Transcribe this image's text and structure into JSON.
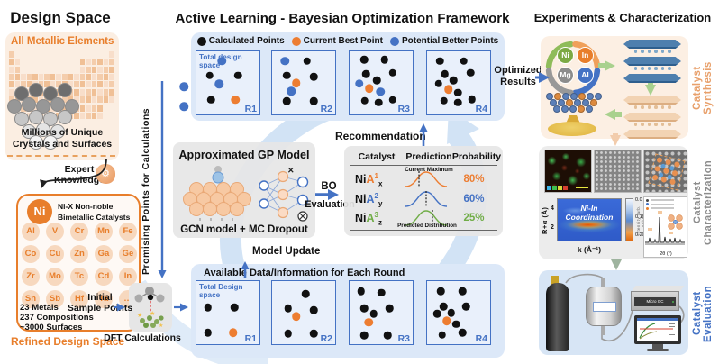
{
  "design": {
    "title": "Design Space",
    "all_metallic": "All Metallic Elements",
    "millions_l1": "Millions of Unique",
    "millions_l2": "Crystals and Surfaces",
    "expert_l1": "Expert",
    "expert_l2": "Knowledge",
    "ni_symbol": "Ni",
    "nix_l1": "Ni-X Non-noble",
    "nix_l2": "Bimetallic Catalysts",
    "element_rows": [
      [
        "Al",
        "V",
        "Cr",
        "Mn",
        "Fe"
      ],
      [
        "Co",
        "Cu",
        "Zn",
        "Ga",
        "Ge"
      ],
      [
        "Zr",
        "Mo",
        "Tc",
        "Cd",
        "In"
      ],
      [
        "Sn",
        "Sb",
        "Hf",
        "Ta",
        "…"
      ]
    ],
    "stats": [
      "23 Metals",
      "237 Compositions",
      "~3000 Surfaces"
    ],
    "refined": "Refined Design Space",
    "initial_l1": "Initial",
    "initial_l2": "Sample Points"
  },
  "framework": {
    "title": "Active Learning - Bayesian Optimization Framework",
    "legend": [
      {
        "label": "Calculated Points",
        "color": "#111111"
      },
      {
        "label": "Current Best Point",
        "color": "#ED7D31"
      },
      {
        "label": "Potential Better Points",
        "color": "#4472C4"
      }
    ],
    "dot_colors": {
      "k": "#111111",
      "o": "#ED7D31",
      "b": "#4472C4"
    },
    "top_rounds": {
      "note": "Total design space",
      "rounds": [
        {
          "label": "R1",
          "dots": [
            [
              40,
              15,
              "b"
            ],
            [
              21,
              38,
              "k"
            ],
            [
              66,
              38,
              "k"
            ],
            [
              36,
              52,
              "b"
            ],
            [
              23,
              77,
              "k"
            ],
            [
              62,
              77,
              "o"
            ]
          ]
        },
        {
          "label": "R2",
          "dots": [
            [
              20,
              15,
              "b"
            ],
            [
              55,
              15,
              "k"
            ],
            [
              23,
              38,
              "k"
            ],
            [
              66,
              40,
              "k"
            ],
            [
              38,
              50,
              "o"
            ],
            [
              30,
              63,
              "b"
            ],
            [
              23,
              79,
              "k"
            ],
            [
              66,
              79,
              "k"
            ]
          ]
        },
        {
          "label": "R3",
          "dots": [
            [
              23,
              13,
              "k"
            ],
            [
              55,
              13,
              "k"
            ],
            [
              26,
              36,
              "k"
            ],
            [
              68,
              34,
              "k"
            ],
            [
              15,
              51,
              "b"
            ],
            [
              43,
              46,
              "k"
            ],
            [
              31,
              59,
              "o"
            ],
            [
              49,
              64,
              "b"
            ],
            [
              24,
              78,
              "k"
            ],
            [
              46,
              81,
              "k"
            ],
            [
              68,
              77,
              "k"
            ]
          ]
        },
        {
          "label": "R4",
          "dots": [
            [
              20,
              15,
              "k"
            ],
            [
              58,
              15,
              "k"
            ],
            [
              28,
              36,
              "k"
            ],
            [
              69,
              34,
              "k"
            ],
            [
              18,
              51,
              "k"
            ],
            [
              42,
              46,
              "k"
            ],
            [
              34,
              60,
              "o"
            ],
            [
              49,
              65,
              "k"
            ],
            [
              27,
              78,
              "k"
            ],
            [
              49,
              81,
              "k"
            ],
            [
              71,
              76,
              "k"
            ]
          ]
        }
      ]
    },
    "bottom_rounds": {
      "title": "Available Data/Information for Each Round",
      "note": "Total Design space",
      "rounds": [
        {
          "label": "R1",
          "dots": [
            [
              18,
              42,
              "k"
            ],
            [
              60,
              42,
              "k"
            ],
            [
              18,
              82,
              "k"
            ],
            [
              58,
              82,
              "o"
            ]
          ]
        },
        {
          "label": "R2",
          "dots": [
            [
              53,
              20,
              "k"
            ],
            [
              25,
              43,
              "k"
            ],
            [
              66,
              46,
              "k"
            ],
            [
              38,
              56,
              "o"
            ],
            [
              25,
              83,
              "k"
            ],
            [
              66,
              83,
              "k"
            ]
          ]
        },
        {
          "label": "R3",
          "dots": [
            [
              18,
              16,
              "k"
            ],
            [
              50,
              18,
              "k"
            ],
            [
              23,
              43,
              "k"
            ],
            [
              63,
              43,
              "k"
            ],
            [
              38,
              52,
              "k"
            ],
            [
              30,
              65,
              "o"
            ],
            [
              23,
              86,
              "k"
            ],
            [
              60,
              86,
              "k"
            ]
          ]
        },
        {
          "label": "R4",
          "dots": [
            [
              22,
              16,
              "k"
            ],
            [
              56,
              16,
              "k"
            ],
            [
              26,
              40,
              "k"
            ],
            [
              62,
              40,
              "k"
            ],
            [
              16,
              52,
              "k"
            ],
            [
              38,
              50,
              "k"
            ],
            [
              31,
              63,
              "o"
            ],
            [
              46,
              68,
              "k"
            ],
            [
              24,
              85,
              "k"
            ],
            [
              56,
              82,
              "k"
            ]
          ]
        }
      ]
    },
    "recommendation": "Recommendation",
    "gp_title": "Approximated GP Model",
    "gp_caption_left": "GCN model",
    "gp_caption_plus": "+",
    "gp_caption_right": "MC Dropout",
    "bo_l1": "BO",
    "bo_l2": "Evaluation",
    "model_update": "Model Update",
    "promising": "Promising Points for Calculations",
    "dft": "DFT Calculations",
    "optimized_l1": "Optimized",
    "optimized_l2": "Results",
    "table": {
      "headers": [
        "Catalyst",
        "Prediction",
        "Probability"
      ],
      "current_max": "Current Maximum",
      "pred_dist": "Predicted Distribution",
      "catalyst_prefix": "Ni",
      "catalyst_letter": "A",
      "rows": [
        {
          "sup": "1",
          "sub": "x",
          "color": "#ED7D31",
          "prob": "80%",
          "dash_pos": "left"
        },
        {
          "sup": "2",
          "sub": "y",
          "color": "#4472C4",
          "prob": "60%",
          "dash_pos": "center"
        },
        {
          "sup": "3",
          "sub": "z",
          "color": "#70AD47",
          "prob": "25%",
          "dash_pos": "right"
        }
      ]
    }
  },
  "experiments": {
    "title": "Experiments & Characterization",
    "synthesis_label": "Catalyst Synthesis",
    "characterization_label": "Catalyst Characterization",
    "evaluation_label": "Catalyst Evaluation",
    "cycle": [
      {
        "symbol": "Ni",
        "color": "#7CA944"
      },
      {
        "symbol": "In",
        "color": "#E87E2B"
      },
      {
        "symbol": "Mg",
        "color": "#8C8C8C"
      },
      {
        "symbol": "Al",
        "color": "#4472C4"
      }
    ],
    "wavelet": {
      "line1": "Ni-In",
      "line2": "Coordination",
      "ylabel": "R+α (Å)",
      "xlabel": "k (Å⁻¹)",
      "yticks": [
        "4",
        "2"
      ],
      "cbar_ticks": [
        "0.0",
        "0.10",
        "0.20"
      ],
      "cbar_label": "Intensity (arb. units)"
    },
    "xrd": {
      "xlabel": "2θ (°)"
    },
    "gc_label": "Micro GC"
  }
}
